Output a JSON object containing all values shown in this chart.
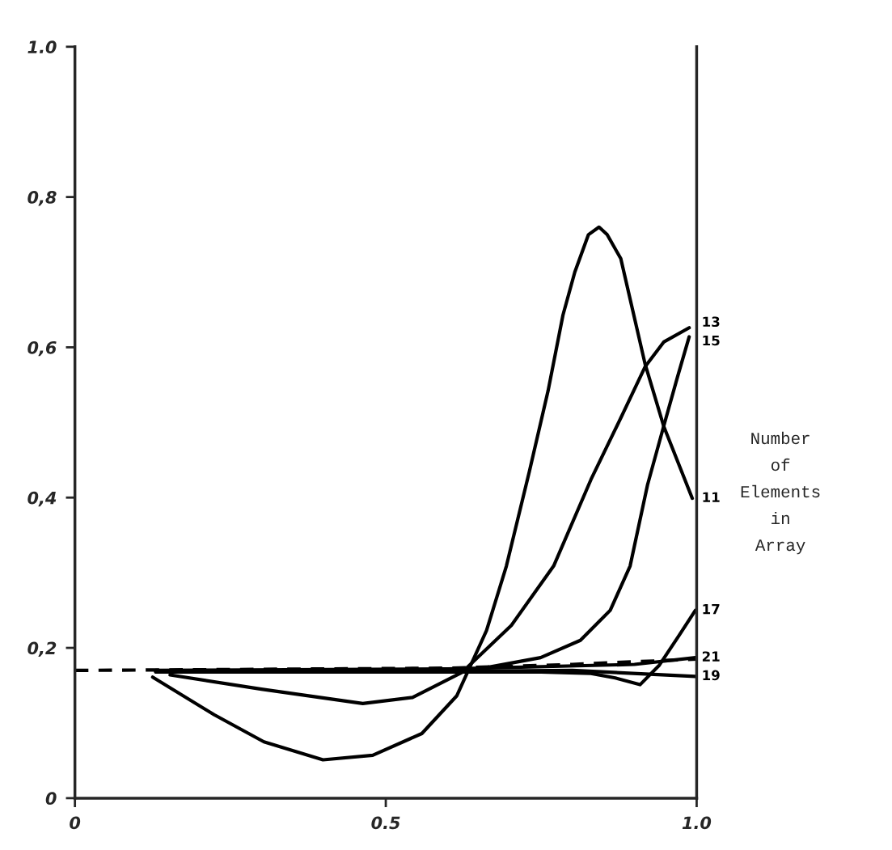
{
  "chart_data": {
    "type": "line",
    "xlim": [
      0,
      1.0
    ],
    "ylim": [
      0,
      1.0
    ],
    "xticks": [
      0,
      0.5,
      {
        "value": 1,
        "label": "1.0"
      }
    ],
    "yticks": [
      0,
      {
        "value": 0.2,
        "label": "0,2"
      },
      {
        "value": 0.4,
        "label": "0,4"
      },
      {
        "value": 0.6,
        "label": "0,6"
      },
      {
        "value": 0.8,
        "label": "0,8"
      },
      {
        "value": 1,
        "label": "1.0"
      }
    ],
    "grid": false,
    "legend": false,
    "marker": "none",
    "annotations": [
      "Number\nof\nElements\nin\nArray"
    ],
    "series": [
      {
        "name": "11",
        "color": "#000000",
        "x": [
          0.125,
          0.224,
          0.304,
          0.399,
          0.479,
          0.558,
          0.614,
          0.662,
          0.694,
          0.731,
          0.761,
          0.785,
          0.804,
          0.826,
          0.843,
          0.856,
          0.878,
          0.895,
          0.917,
          0.947,
          0.993
        ],
        "values": [
          0.161,
          0.111,
          0.075,
          0.051,
          0.057,
          0.086,
          0.136,
          0.223,
          0.309,
          0.435,
          0.542,
          0.643,
          0.7,
          0.75,
          0.76,
          0.75,
          0.718,
          0.657,
          0.578,
          0.495,
          0.399
        ]
      },
      {
        "name": "13",
        "color": "#000000",
        "x": [
          0.153,
          0.3,
          0.463,
          0.543,
          0.622,
          0.702,
          0.77,
          0.83,
          0.878,
          0.917,
          0.947,
          0.988
        ],
        "values": [
          0.164,
          0.145,
          0.126,
          0.134,
          0.167,
          0.23,
          0.309,
          0.424,
          0.506,
          0.574,
          0.607,
          0.626
        ]
      },
      {
        "name": "15",
        "color": "#000000",
        "x": [
          0.13,
          0.5,
          0.65,
          0.749,
          0.813,
          0.861,
          0.893,
          0.921,
          0.947,
          0.969,
          0.988
        ],
        "values": [
          0.168,
          0.17,
          0.172,
          0.187,
          0.21,
          0.25,
          0.309,
          0.417,
          0.495,
          0.56,
          0.614
        ]
      },
      {
        "name": "17",
        "color": "#000000",
        "x": [
          0.13,
          0.5,
          0.75,
          0.83,
          0.869,
          0.909,
          0.94,
          0.972,
          0.998
        ],
        "values": [
          0.168,
          0.168,
          0.168,
          0.166,
          0.16,
          0.151,
          0.177,
          0.217,
          0.25
        ]
      },
      {
        "name": "19",
        "color": "#000000",
        "x": [
          0.13,
          0.5,
          0.8,
          0.998
        ],
        "values": [
          0.168,
          0.168,
          0.17,
          0.162
        ]
      },
      {
        "name": "21",
        "color": "#000000",
        "x": [
          0.13,
          0.6,
          0.9,
          0.998
        ],
        "values": [
          0.17,
          0.172,
          0.178,
          0.187
        ]
      },
      {
        "color": "#000000",
        "line_style": "dashed",
        "x": [
          0,
          0.6,
          0.8,
          1.0
        ],
        "values": [
          0.17,
          0.173,
          0.178,
          0.185
        ]
      }
    ]
  }
}
